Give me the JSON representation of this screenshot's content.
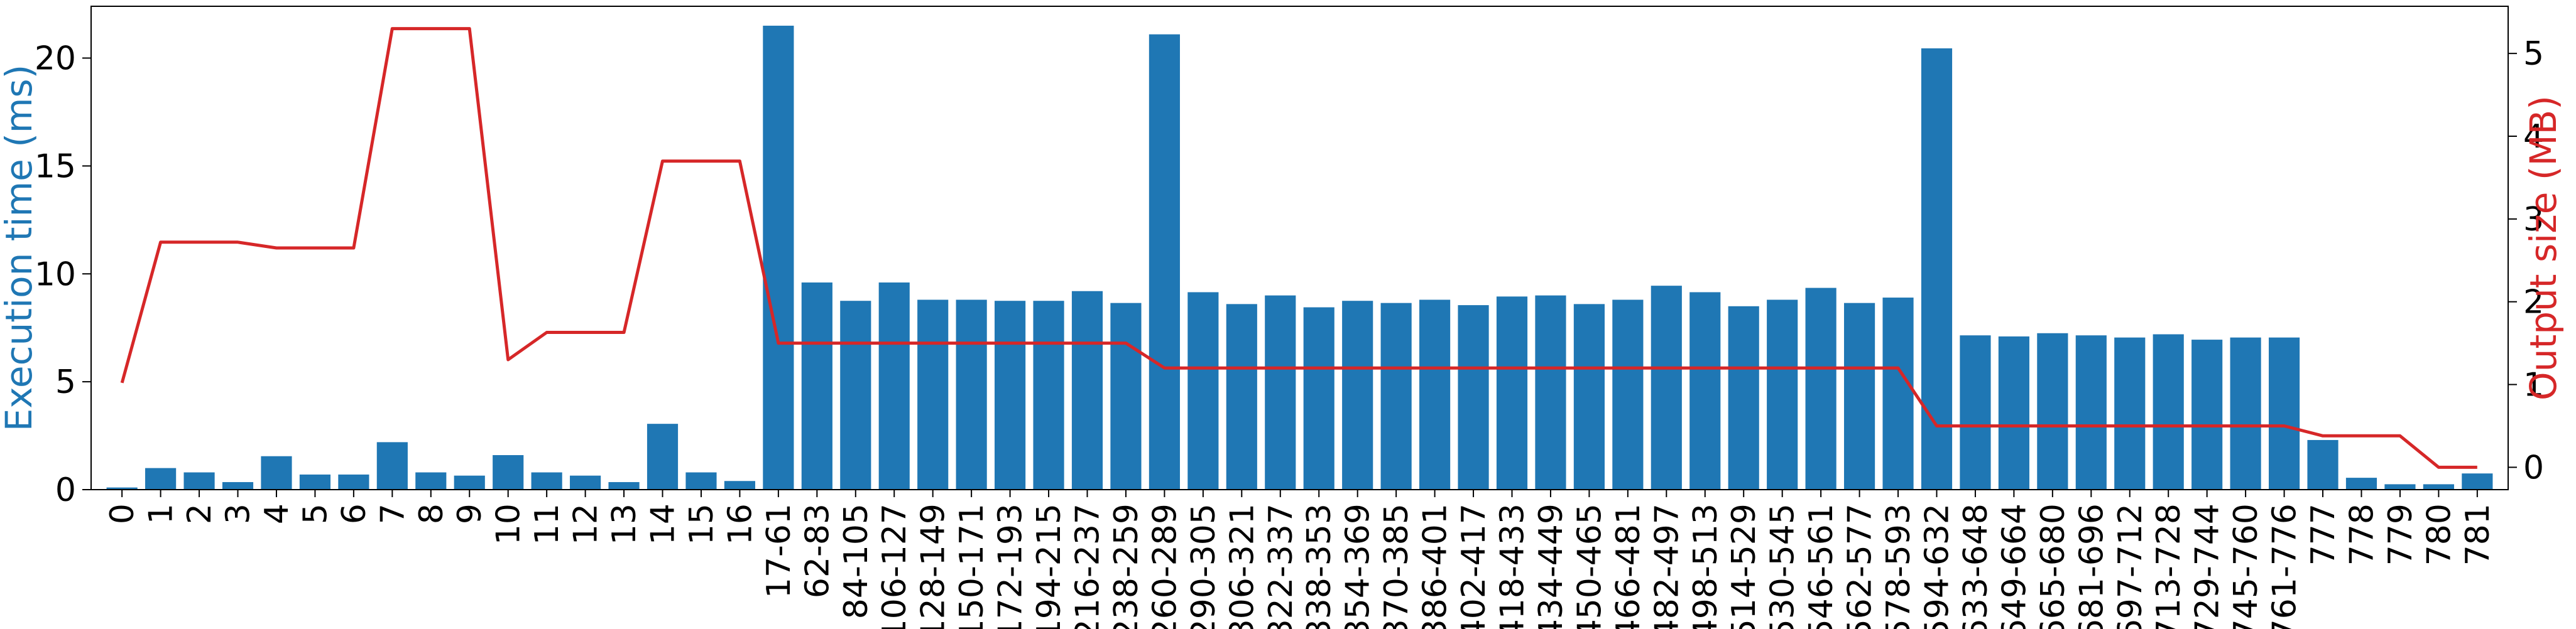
{
  "chart_data": {
    "type": "bar",
    "categories": [
      "0",
      "1",
      "2",
      "3",
      "4",
      "5",
      "6",
      "7",
      "8",
      "9",
      "10",
      "11",
      "12",
      "13",
      "14",
      "15",
      "16",
      "17-61",
      "62-83",
      "84-105",
      "106-127",
      "128-149",
      "150-171",
      "172-193",
      "194-215",
      "216-237",
      "238-259",
      "260-289",
      "290-305",
      "306-321",
      "322-337",
      "338-353",
      "354-369",
      "370-385",
      "386-401",
      "402-417",
      "418-433",
      "434-449",
      "450-465",
      "466-481",
      "482-497",
      "498-513",
      "514-529",
      "530-545",
      "546-561",
      "562-577",
      "578-593",
      "594-632",
      "633-648",
      "649-664",
      "665-680",
      "681-696",
      "697-712",
      "713-728",
      "729-744",
      "745-760",
      "761-776",
      "777",
      "778",
      "779",
      "780",
      "781"
    ],
    "series": [
      {
        "axis": "left",
        "type": "bar",
        "color": "#1f77b4",
        "values": [
          0.1,
          1.0,
          0.8,
          0.35,
          1.55,
          0.7,
          0.7,
          2.2,
          0.8,
          0.65,
          1.6,
          0.8,
          0.65,
          0.35,
          3.05,
          0.8,
          0.4,
          21.5,
          9.6,
          8.75,
          9.6,
          8.8,
          8.8,
          8.75,
          8.75,
          9.2,
          8.65,
          21.1,
          9.15,
          8.6,
          9.0,
          8.45,
          8.75,
          8.65,
          8.8,
          8.55,
          8.95,
          9.0,
          8.6,
          8.8,
          9.45,
          9.15,
          8.5,
          8.8,
          9.35,
          8.65,
          8.9,
          20.45,
          7.15,
          7.1,
          7.25,
          7.15,
          7.05,
          7.2,
          6.95,
          7.05,
          7.05,
          2.3,
          0.55,
          0.25,
          0.25,
          0.75
        ]
      },
      {
        "axis": "right",
        "type": "line",
        "color": "#d62728",
        "values": [
          1.02,
          2.72,
          2.72,
          2.72,
          2.65,
          2.65,
          2.65,
          5.3,
          5.3,
          5.3,
          1.3,
          1.63,
          1.63,
          1.63,
          3.7,
          3.7,
          3.7,
          1.5,
          1.5,
          1.5,
          1.5,
          1.5,
          1.5,
          1.5,
          1.5,
          1.5,
          1.5,
          1.2,
          1.2,
          1.2,
          1.2,
          1.2,
          1.2,
          1.2,
          1.2,
          1.2,
          1.2,
          1.2,
          1.2,
          1.2,
          1.2,
          1.2,
          1.2,
          1.2,
          1.2,
          1.2,
          1.2,
          0.5,
          0.5,
          0.5,
          0.5,
          0.5,
          0.5,
          0.5,
          0.5,
          0.5,
          0.5,
          0.38,
          0.38,
          0.38,
          0.0,
          0.0
        ]
      }
    ],
    "ylabel": "Execution time (ms)",
    "ylabel_right": "Output size (MB)",
    "ylim": [
      0,
      22.4
    ],
    "ylim_right": [
      -0.27,
      5.57
    ],
    "yticks": [
      0,
      5,
      10,
      15,
      20
    ],
    "yticks_right": [
      0,
      1,
      2,
      3,
      4,
      5
    ],
    "grid": false,
    "ylabel_color": "#1f77b4",
    "ylabel_right_color": "#d62728"
  }
}
